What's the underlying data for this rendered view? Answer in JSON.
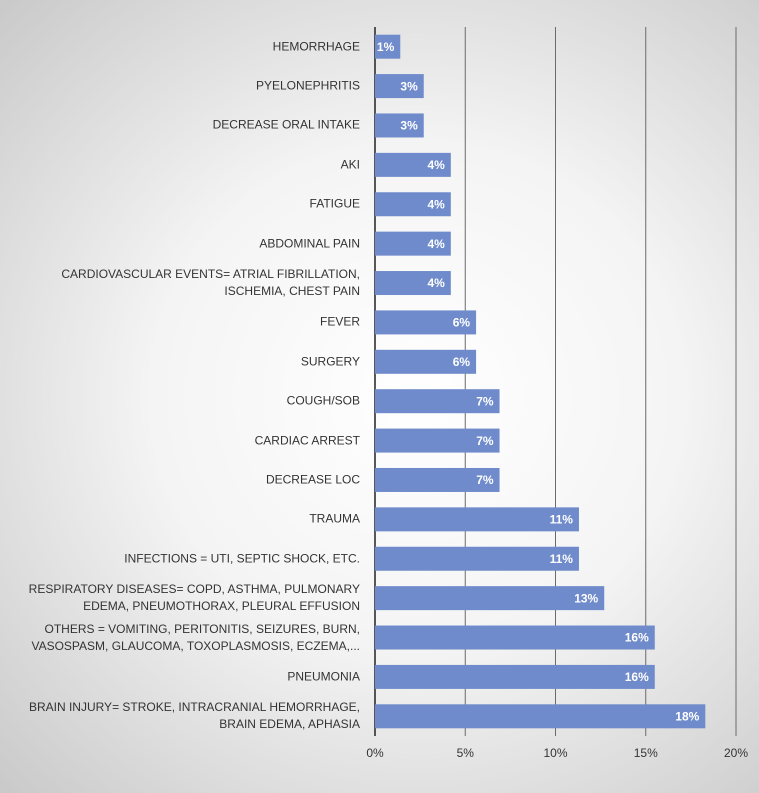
{
  "chart_data": {
    "type": "bar",
    "orientation": "horizontal",
    "color": "#6f8bcb",
    "categories": [
      "HEMORRHAGE",
      "PYELONEPHRITIS",
      "DECREASE ORAL INTAKE",
      "AKI",
      "FATIGUE",
      "ABDOMINAL PAIN",
      "CARDIOVASCULAR EVENTS= ATRIAL FIBRILLATION, ISCHEMIA, CHEST PAIN",
      "FEVER",
      "SURGERY",
      "COUGH/SOB",
      "CARDIAC ARREST",
      "DECREASE LOC",
      "TRAUMA",
      "INFECTIONS = UTI, SEPTIC SHOCK, ETC.",
      "RESPIRATORY DISEASES= COPD, ASTHMA, PULMONARY EDEMA, PNEUMOTHORAX, PLEURAL EFFUSION",
      "OTHERS = VOMITING, PERITONITIS, SEIZURES, BURN, VASOSPASM, GLAUCOMA, TOXOPLASMOSIS, ECZEMA,...",
      "PNEUMONIA",
      "BRAIN INJURY= STROKE, INTRACRANIAL HEMORRHAGE, BRAIN EDEMA, APHASIA"
    ],
    "values": [
      1.4,
      2.7,
      2.7,
      4.2,
      4.2,
      4.2,
      4.2,
      5.6,
      5.6,
      6.9,
      6.9,
      6.9,
      11.3,
      11.3,
      12.7,
      15.5,
      15.5,
      18.3
    ],
    "value_labels": [
      "1%",
      "3%",
      "3%",
      "4%",
      "4%",
      "4%",
      "4%",
      "6%",
      "6%",
      "7%",
      "7%",
      "7%",
      "11%",
      "11%",
      "13%",
      "16%",
      "16%",
      "18%"
    ],
    "xlim": [
      0,
      20
    ],
    "xticks": [
      {
        "value": 0,
        "label": "0%"
      },
      {
        "value": 5,
        "label": "5%"
      },
      {
        "value": 10,
        "label": "10%"
      },
      {
        "value": 15,
        "label": "15%"
      },
      {
        "value": 20,
        "label": "20%"
      }
    ],
    "grid": true
  }
}
